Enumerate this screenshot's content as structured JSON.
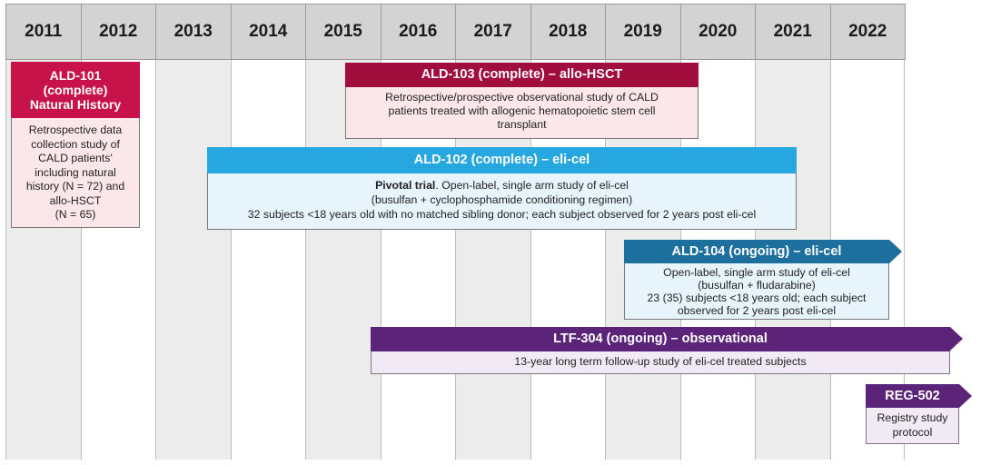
{
  "years": [
    "2011",
    "2012",
    "2013",
    "2014",
    "2015",
    "2016",
    "2017",
    "2018",
    "2019",
    "2020",
    "2021",
    "2022"
  ],
  "colors": {
    "header_bg": "#d3d3d3",
    "ald101": "#c8124a",
    "ald103": "#a10d3c",
    "ald102": "#26a7df",
    "ald104": "#1d6f9e",
    "ltf304": "#5b2479",
    "reg502": "#5b2479",
    "pink_body": "#fbe7ea",
    "blue_body": "#e7f4fb",
    "purple_body": "#f1eaf4"
  },
  "studies": {
    "ald101": {
      "title_lines": [
        "ALD-101",
        "(complete)",
        "Natural History"
      ],
      "body_lines": [
        "Retrospective data",
        "collection study of",
        "CALD patients'",
        "including natural",
        "history (N = 72) and",
        "allo-HSCT",
        "(N = 65)"
      ]
    },
    "ald103": {
      "title": "ALD-103 (complete) – allo-HSCT",
      "body_lines": [
        "Retrospective/prospective observational study of CALD",
        "patients treated with allogenic hematopoietic stem cell",
        "transplant"
      ]
    },
    "ald102": {
      "title": "ALD-102 (complete) – eli-cel",
      "body_bold": "Pivotal trial",
      "body_first_rest": ". Open-label, single arm study of eli-cel",
      "body_lines": [
        "(busulfan + cyclophosphamide conditioning regimen)",
        "32 subjects <18 years old with no matched sibling donor; each subject observed for 2 years post eli-cel"
      ]
    },
    "ald104": {
      "title": "ALD-104 (ongoing) – eli-cel",
      "body_lines": [
        "Open-label, single arm study of eli-cel",
        "(busulfan + fludarabine)",
        "23 (35) subjects <18 years old; each subject",
        "observed for 2 years post eli-cel"
      ]
    },
    "ltf304": {
      "title": "LTF-304 (ongoing) – observational",
      "body_lines": [
        "13-year long term follow-up study of eli-cel treated subjects"
      ]
    },
    "reg502": {
      "title": "REG-502",
      "body_lines": [
        "Registry study",
        "protocol"
      ]
    }
  }
}
